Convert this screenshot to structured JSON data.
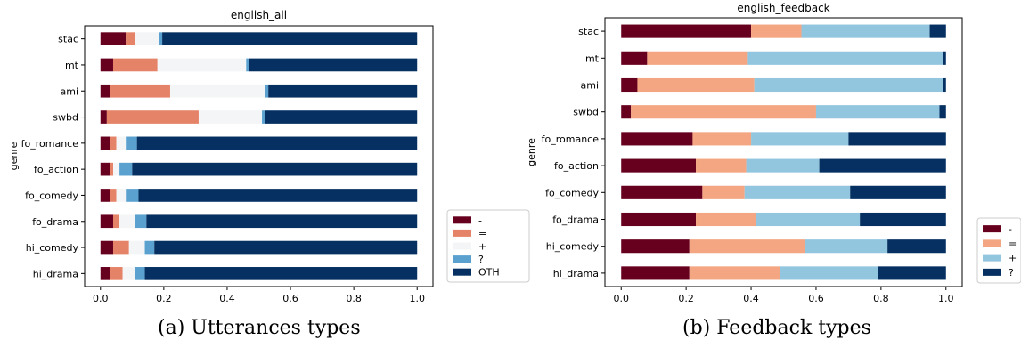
{
  "captions": [
    "(a) Utterances types",
    "(b) Feedback types"
  ],
  "chart_data": [
    {
      "type": "bar",
      "orientation": "horizontal",
      "stacked": true,
      "title": "english_all",
      "xlabel": "",
      "ylabel": "genre",
      "xlim": [
        0,
        1.0
      ],
      "xticks": [
        "0.0",
        "0.2",
        "0.4",
        "0.6",
        "0.8",
        "1.0"
      ],
      "legend_position": "right",
      "categories": [
        "stac",
        "mt",
        "ami",
        "swbd",
        "fo_romance",
        "fo_action",
        "fo_comedy",
        "fo_drama",
        "hi_comedy",
        "hi_drama"
      ],
      "series": [
        {
          "name": "-",
          "color": "#67001f",
          "values": [
            0.08,
            0.04,
            0.03,
            0.02,
            0.03,
            0.03,
            0.03,
            0.04,
            0.04,
            0.03
          ]
        },
        {
          "name": "=",
          "color": "#e58368",
          "values": [
            0.03,
            0.14,
            0.19,
            0.29,
            0.02,
            0.01,
            0.02,
            0.02,
            0.05,
            0.04
          ]
        },
        {
          "name": "+",
          "color": "#f4f5f6",
          "values": [
            0.075,
            0.28,
            0.3,
            0.2,
            0.03,
            0.02,
            0.03,
            0.05,
            0.05,
            0.04
          ]
        },
        {
          "name": "?",
          "color": "#5aa1cf",
          "values": [
            0.01,
            0.01,
            0.01,
            0.01,
            0.035,
            0.04,
            0.04,
            0.035,
            0.03,
            0.03
          ]
        },
        {
          "name": "OTH",
          "color": "#053061",
          "values": [
            0.805,
            0.53,
            0.47,
            0.48,
            0.885,
            0.9,
            0.88,
            0.855,
            0.83,
            0.86
          ]
        }
      ]
    },
    {
      "type": "bar",
      "orientation": "horizontal",
      "stacked": true,
      "title": "english_feedback",
      "xlabel": "",
      "ylabel": "genre",
      "xlim": [
        0,
        1.0
      ],
      "xticks": [
        "0.0",
        "0.2",
        "0.4",
        "0.6",
        "0.8",
        "1.0"
      ],
      "legend_position": "right",
      "categories": [
        "stac",
        "mt",
        "ami",
        "swbd",
        "fo_romance",
        "fo_action",
        "fo_comedy",
        "fo_drama",
        "hi_comedy",
        "hi_drama"
      ],
      "series": [
        {
          "name": "-",
          "color": "#67001f",
          "values": [
            0.4,
            0.08,
            0.05,
            0.03,
            0.22,
            0.23,
            0.25,
            0.23,
            0.21,
            0.21
          ]
        },
        {
          "name": "=",
          "color": "#f4a582",
          "values": [
            0.155,
            0.31,
            0.36,
            0.57,
            0.18,
            0.155,
            0.13,
            0.185,
            0.355,
            0.28
          ]
        },
        {
          "name": "+",
          "color": "#92c5de",
          "values": [
            0.395,
            0.6,
            0.58,
            0.38,
            0.3,
            0.225,
            0.325,
            0.32,
            0.255,
            0.3
          ]
        },
        {
          "name": "?",
          "color": "#053061",
          "values": [
            0.05,
            0.01,
            0.01,
            0.02,
            0.3,
            0.39,
            0.295,
            0.265,
            0.18,
            0.21
          ]
        }
      ]
    }
  ]
}
